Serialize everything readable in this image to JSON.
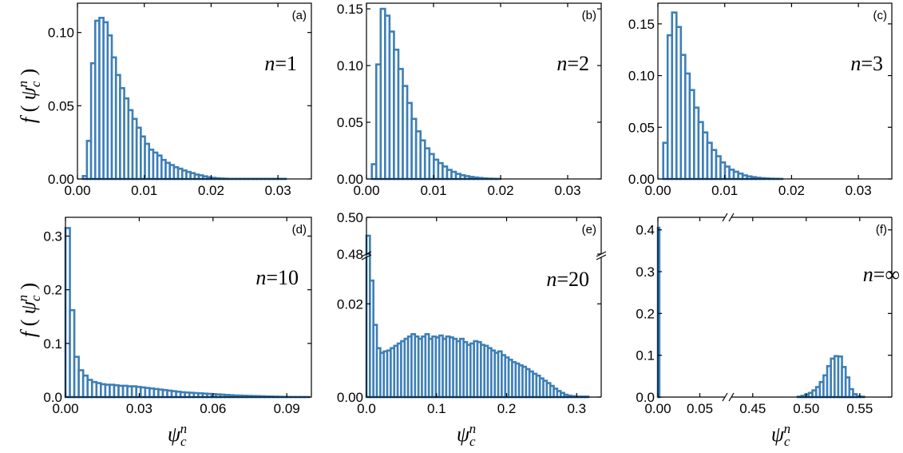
{
  "figure": {
    "ylabel_f": "f",
    "ylabel_psi": "ψ",
    "ylabel_sub": "c",
    "ylabel_sup": "n",
    "xlabel_psi": "ψ",
    "xlabel_sub": "c",
    "xlabel_sup": "n",
    "colors": {
      "bar_edge": "#3d7fb8",
      "bar_fill": "#ffffff",
      "frame": "#000000"
    }
  },
  "chart_data": [
    {
      "type": "bar",
      "panel": "(a)",
      "n_var": "n",
      "n_val": "=1",
      "xlim": [
        0,
        0.035
      ],
      "ylim": [
        0,
        0.12
      ],
      "xticks": [
        0.0,
        0.01,
        0.02,
        0.03
      ],
      "xtick_labels": [
        "0.00",
        "0.01",
        "0.02",
        "0.03"
      ],
      "yticks": [
        0.0,
        0.05,
        0.1
      ],
      "ytick_labels": [
        "0.00",
        "0.05",
        "0.10"
      ],
      "bin_start": 0.0008,
      "bin_width": 0.00062,
      "values": [
        0.002,
        0.026,
        0.079,
        0.108,
        0.11,
        0.107,
        0.098,
        0.083,
        0.071,
        0.062,
        0.055,
        0.047,
        0.041,
        0.035,
        0.029,
        0.024,
        0.02,
        0.018,
        0.016,
        0.013,
        0.011,
        0.0095,
        0.008,
        0.007,
        0.0058,
        0.0048,
        0.004,
        0.003,
        0.0025,
        0.0018,
        0.0012,
        0.0008,
        0.0005,
        0.0003,
        0.0002,
        0.0001,
        0.0001,
        0.0001,
        0.0001,
        0.0001,
        0.0001,
        0.0001,
        0.0001,
        0.0001,
        0.0001,
        0.0001,
        0.0001,
        0.0001,
        0.0001
      ]
    },
    {
      "type": "bar",
      "panel": "(b)",
      "n_var": "n",
      "n_val": "=2",
      "xlim": [
        0,
        0.035
      ],
      "ylim": [
        0,
        0.155
      ],
      "xticks": [
        0.0,
        0.01,
        0.02,
        0.03
      ],
      "xtick_labels": [
        "0.00",
        "0.01",
        "0.02",
        "0.03"
      ],
      "yticks": [
        0.0,
        0.05,
        0.1,
        0.15
      ],
      "ytick_labels": [
        "0.00",
        "0.05",
        "0.10",
        "0.15"
      ],
      "bin_start": 0.0008,
      "bin_width": 0.00066,
      "values": [
        0.013,
        0.101,
        0.15,
        0.144,
        0.13,
        0.114,
        0.097,
        0.082,
        0.067,
        0.053,
        0.042,
        0.034,
        0.027,
        0.022,
        0.017,
        0.014,
        0.011,
        0.008,
        0.0063,
        0.0045,
        0.0033,
        0.0025,
        0.0018,
        0.0013,
        0.0009,
        0.0005,
        0.0003,
        0.0002,
        0.0001
      ]
    },
    {
      "type": "bar",
      "panel": "(c)",
      "n_var": "n",
      "n_val": "=3",
      "xlim": [
        0,
        0.035
      ],
      "ylim": [
        0,
        0.17
      ],
      "xticks": [
        0.0,
        0.01,
        0.02,
        0.03
      ],
      "xtick_labels": [
        "0.00",
        "0.01",
        "0.02",
        "0.03"
      ],
      "yticks": [
        0.0,
        0.05,
        0.1,
        0.15
      ],
      "ytick_labels": [
        "0.00",
        "0.05",
        "0.10",
        "0.15"
      ],
      "bin_start": 0.0008,
      "bin_width": 0.00066,
      "values": [
        0.035,
        0.139,
        0.161,
        0.147,
        0.12,
        0.102,
        0.086,
        0.069,
        0.055,
        0.045,
        0.035,
        0.028,
        0.022,
        0.016,
        0.012,
        0.009,
        0.007,
        0.0052,
        0.0035,
        0.0025,
        0.0018,
        0.0012,
        0.0008,
        0.0005,
        0.0003,
        0.0002,
        0.0001
      ]
    },
    {
      "type": "bar",
      "panel": "(d)",
      "n_var": "n",
      "n_val": "=10",
      "xlim": [
        0,
        0.1
      ],
      "ylim": [
        0,
        0.335
      ],
      "xticks": [
        0.0,
        0.03,
        0.06,
        0.09
      ],
      "xtick_labels": [
        "0.00",
        "0.03",
        "0.06",
        "0.09"
      ],
      "yticks": [
        0.0,
        0.1,
        0.2,
        0.3
      ],
      "ytick_labels": [
        "0.0",
        "0.1",
        "0.2",
        "0.3"
      ],
      "bin_start": 0.0,
      "bin_width": 0.0018,
      "values": [
        0.315,
        0.162,
        0.075,
        0.05,
        0.04,
        0.032,
        0.028,
        0.026,
        0.024,
        0.023,
        0.023,
        0.022,
        0.021,
        0.021,
        0.02,
        0.02,
        0.019,
        0.018,
        0.017,
        0.016,
        0.015,
        0.014,
        0.013,
        0.012,
        0.011,
        0.01,
        0.009,
        0.0085,
        0.008,
        0.0075,
        0.007,
        0.0065,
        0.006,
        0.0055,
        0.005,
        0.0045,
        0.004,
        0.0035,
        0.003,
        0.0028,
        0.0025,
        0.0022,
        0.002,
        0.0018,
        0.0015,
        0.0012,
        0.001,
        0.0008,
        0.0006,
        0.0004,
        0.0003,
        0.0002,
        0.0001,
        0.0001,
        0.0001
      ]
    },
    {
      "type": "bar",
      "panel": "(e)",
      "n_var": "n",
      "n_val": "=20",
      "xlim": [
        0,
        0.335
      ],
      "ylim_lower": [
        0,
        0.03
      ],
      "ylim_upper": [
        0.48,
        0.5
      ],
      "xticks": [
        0.0,
        0.1,
        0.2,
        0.3
      ],
      "xtick_labels": [
        "0.0",
        "0.1",
        "0.2",
        "0.3"
      ],
      "yticks_lower": [
        0.0,
        0.02
      ],
      "ytick_labels_lower": [
        "0.00",
        "0.02"
      ],
      "yticks_upper": [
        0.48,
        0.5
      ],
      "ytick_labels_upper": [
        "0.48",
        "0.50"
      ],
      "bin_start": 0.0,
      "bin_width": 0.00495,
      "values": [
        0.49,
        0.025,
        0.0155,
        0.0105,
        0.0095,
        0.0098,
        0.01,
        0.0105,
        0.011,
        0.0115,
        0.012,
        0.0125,
        0.013,
        0.0135,
        0.013,
        0.0125,
        0.013,
        0.0135,
        0.0125,
        0.013,
        0.0128,
        0.0132,
        0.0125,
        0.013,
        0.0128,
        0.0125,
        0.012,
        0.0125,
        0.0118,
        0.0112,
        0.0115,
        0.012,
        0.0118,
        0.0112,
        0.011,
        0.0105,
        0.01,
        0.0095,
        0.0098,
        0.009,
        0.0085,
        0.008,
        0.0075,
        0.0072,
        0.0068,
        0.0065,
        0.006,
        0.0055,
        0.005,
        0.0046,
        0.004,
        0.0035,
        0.003,
        0.0024,
        0.0018,
        0.0013,
        0.0009,
        0.0005,
        0.0003,
        0.0002,
        0.0001,
        0.0001,
        0.0001,
        0.0001
      ]
    },
    {
      "type": "bar",
      "panel": "(f)",
      "n_var": "n",
      "n_val": "=∞",
      "broken_x": true,
      "xlim_left": [
        0,
        0.08
      ],
      "xlim_right": [
        0.43,
        0.58
      ],
      "ylim": [
        0,
        0.43
      ],
      "xticks_left": [
        0.0,
        0.05
      ],
      "xtick_labels_left": [
        "0.00",
        "0.05"
      ],
      "xticks_right": [
        0.45,
        0.5,
        0.55
      ],
      "xtick_labels_right": [
        "0.45",
        "0.50",
        "0.55"
      ],
      "yticks": [
        0.0,
        0.1,
        0.2,
        0.3,
        0.4
      ],
      "ytick_labels": [
        "0.0",
        "0.1",
        "0.2",
        "0.3",
        "0.4"
      ],
      "left_bars": [
        {
          "x": 0.0,
          "width": 0.0018,
          "value": 0.405
        }
      ],
      "right_bin_start": 0.492,
      "right_bin_width": 0.00345,
      "right_values": [
        0.001,
        0.003,
        0.006,
        0.01,
        0.016,
        0.024,
        0.036,
        0.052,
        0.074,
        0.092,
        0.098,
        0.097,
        0.072,
        0.047,
        0.019,
        0.007,
        0.002,
        0.001
      ]
    }
  ]
}
